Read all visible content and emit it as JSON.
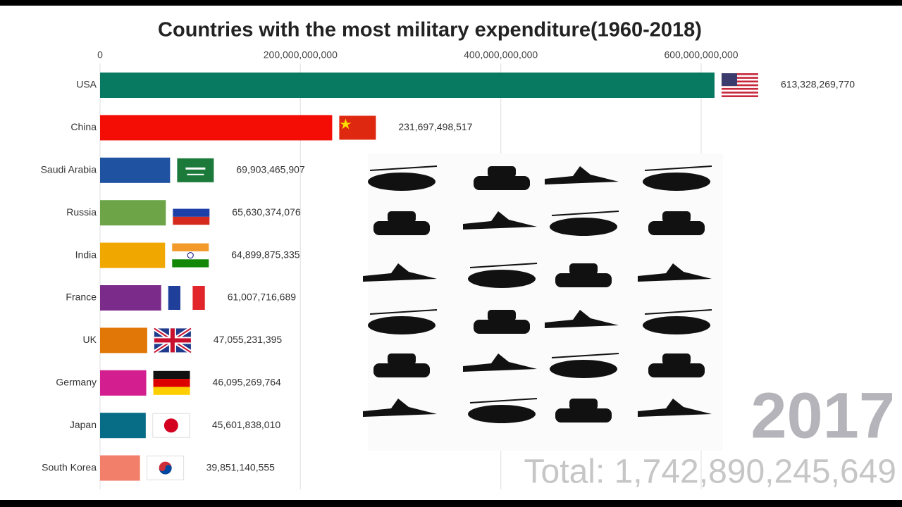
{
  "chart_data": {
    "type": "bar",
    "orientation": "horizontal",
    "title": "Countries with the most military expenditure(1960-2018)",
    "categories": [
      "USA",
      "China",
      "Saudi Arabia",
      "Russia",
      "India",
      "France",
      "UK",
      "Germany",
      "Japan",
      "South Korea"
    ],
    "values": [
      613328269770,
      231697498517,
      69903465907,
      65630374076,
      64899875335,
      61007716689,
      47055231395,
      46095269764,
      45601838010,
      39851140555
    ],
    "value_labels": [
      "613,328,269,770",
      "231,697,498,517",
      "69,903,465,907",
      "65,630,374,076",
      "64,899,875,335",
      "61,007,716,689",
      "47,055,231,395",
      "46,095,269,764",
      "45,601,838,010",
      "39,851,140,555"
    ],
    "colors": [
      "#077a61",
      "#f40d05",
      "#1f52a0",
      "#6ca447",
      "#f0a800",
      "#7b2c8a",
      "#e07706",
      "#d21e8e",
      "#076c86",
      "#f27f6a"
    ],
    "xlim": [
      0,
      700000000000
    ],
    "xticks": [
      0,
      {
        "value": 200000000000,
        "label": "200,000,000,000"
      },
      {
        "value": 400000000000,
        "label": "400,000,000,000"
      },
      {
        "value": 600000000000,
        "label": "600,000,000,000"
      }
    ],
    "grid": true,
    "year": "2017",
    "total": "Total: 1,742,890,245,649"
  }
}
